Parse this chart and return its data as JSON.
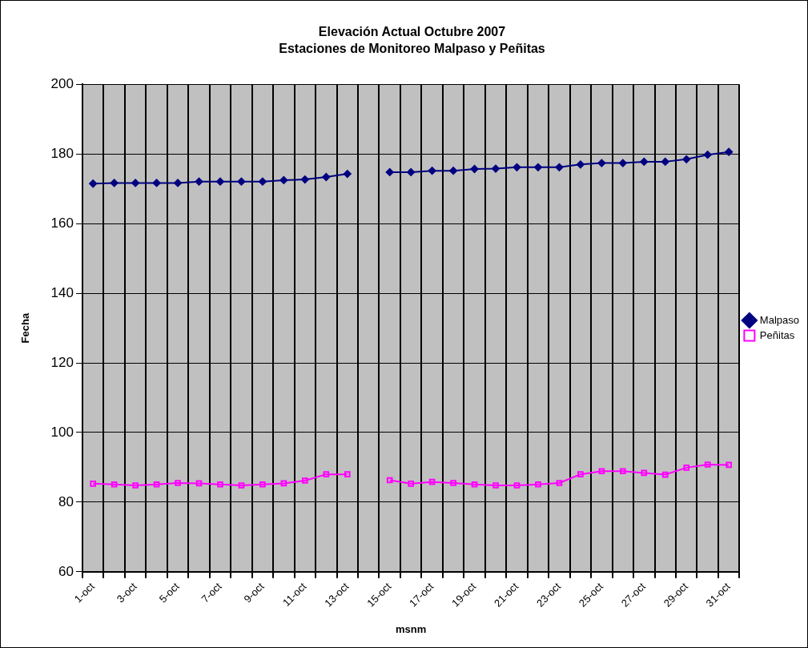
{
  "chart_data": {
    "type": "line",
    "title": "Elevación Actual Octubre 2007",
    "subtitle": "Estaciones de Monitoreo Malpaso y Peñitas",
    "xlabel": "msnm",
    "ylabel": "Fecha",
    "categories": [
      "1-oct",
      null,
      "3-oct",
      null,
      "5-oct",
      null,
      "7-oct",
      null,
      "9-oct",
      null,
      "11-oct",
      null,
      "13-oct",
      null,
      "15-oct",
      null,
      "17-oct",
      null,
      "19-oct",
      null,
      "21-oct",
      null,
      "23-oct",
      null,
      "25-oct",
      null,
      "27-oct",
      null,
      "29-oct",
      null,
      "31-oct"
    ],
    "series": [
      {
        "name": "Malpaso",
        "color": "#000080",
        "marker": "diamond",
        "values": [
          171.5,
          171.7,
          171.7,
          171.7,
          171.7,
          172.1,
          172.1,
          172.1,
          172.1,
          172.5,
          172.7,
          173.4,
          174.3,
          null,
          174.8,
          174.8,
          175.2,
          175.2,
          175.7,
          175.8,
          176.2,
          176.2,
          176.2,
          177.0,
          177.4,
          177.4,
          177.8,
          177.8,
          178.5,
          179.8,
          180.6
        ]
      },
      {
        "name": "Peñitas",
        "color": "#ff00ff",
        "marker": "square",
        "values": [
          85.3,
          85.1,
          84.8,
          85.1,
          85.5,
          85.4,
          85.1,
          84.8,
          85.1,
          85.4,
          86.2,
          88.0,
          88.0,
          null,
          86.3,
          85.3,
          85.8,
          85.5,
          85.1,
          84.8,
          84.8,
          85.1,
          85.5,
          88.0,
          88.9,
          88.9,
          88.4,
          87.9,
          89.9,
          90.8,
          90.7
        ]
      }
    ],
    "ylim": [
      60,
      200
    ],
    "yticks": [
      60,
      80,
      100,
      120,
      140,
      160,
      180,
      200
    ],
    "grid": true,
    "legend": "right",
    "line_style": "solid"
  }
}
